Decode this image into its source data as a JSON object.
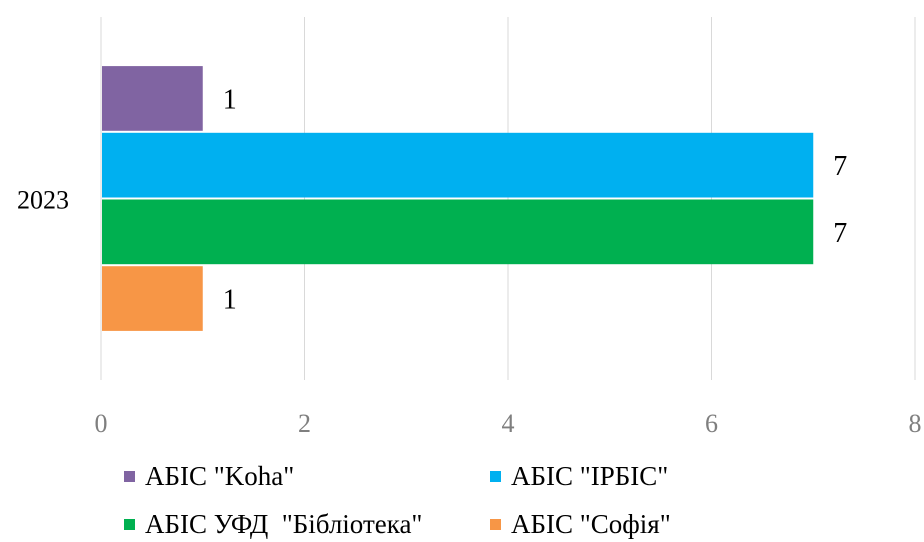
{
  "chart_data": {
    "type": "bar",
    "orientation": "horizontal",
    "categories": [
      "2023"
    ],
    "series": [
      {
        "name": "АБІС \"Koha\"",
        "values": [
          1
        ],
        "color": "#8064a2"
      },
      {
        "name": "АБІС \"ІРБІС\"",
        "values": [
          7
        ],
        "color": "#00b0f0"
      },
      {
        "name": "АБІС УФД  \"Бібліотека\"",
        "values": [
          7
        ],
        "color": "#00b050"
      },
      {
        "name": "АБІС \"Софія\"",
        "values": [
          1
        ],
        "color": "#f79646"
      }
    ],
    "xlim": [
      0,
      8
    ],
    "xticks": [
      "0",
      "2",
      "4",
      "6",
      "8"
    ],
    "grid": true,
    "legend_position": "bottom"
  }
}
